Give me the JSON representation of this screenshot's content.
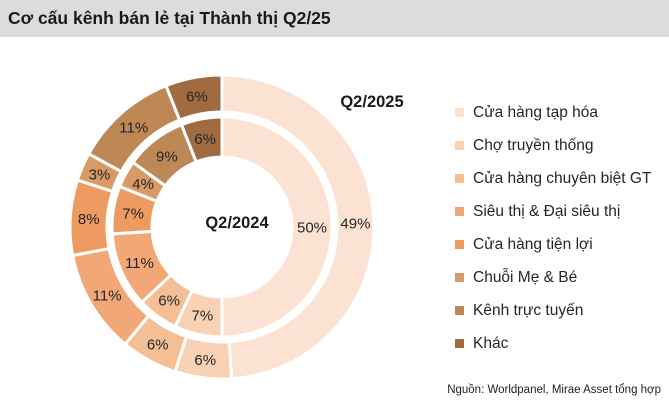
{
  "header": {
    "title": "Cơ cấu kênh bán lẻ tại Thành thị Q2/25"
  },
  "chart_data": {
    "type": "pie",
    "subtype": "double_donut",
    "title": "Cơ cấu kênh bán lẻ tại Thành thị Q2/25",
    "unit": "%",
    "categories": [
      "Cửa hàng tạp hóa",
      "Chợ truyền thống",
      "Cửa hàng chuyên biệt GT",
      "Siêu thị & Đại siêu thị",
      "Cửa hàng tiện lợi",
      "Chuỗi Mẹ & Bé",
      "Kênh trực tuyến",
      "Khác"
    ],
    "colors": [
      "#fbe2d2",
      "#f9d2b5",
      "#f5bf95",
      "#f1a876",
      "#ee9b61",
      "#d89a66",
      "#bd8756",
      "#a06b41"
    ],
    "series": [
      {
        "name": "Q2/2025",
        "ring": "outer",
        "values": [
          49,
          6,
          6,
          11,
          8,
          3,
          11,
          6
        ]
      },
      {
        "name": "Q2/2024",
        "ring": "inner",
        "values": [
          50,
          7,
          6,
          11,
          7,
          4,
          9,
          6
        ]
      }
    ],
    "outer_ring_label": "Q2/2025",
    "inner_ring_label": "Q2/2024",
    "legend_position": "right",
    "label_format": "value%"
  },
  "source": "Nguồn: Worldpanel, Mirae Asset tổng hợp",
  "style": {
    "titlebar_bg": "#dcdcdc",
    "text_color": "#262626",
    "divider_color": "#ffffff"
  }
}
